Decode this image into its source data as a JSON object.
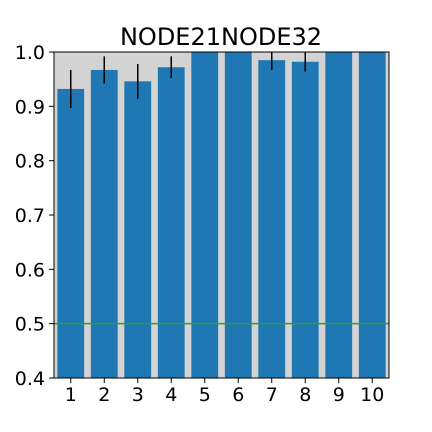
{
  "chart_data": {
    "type": "bar",
    "title": "NODE21NODE32",
    "xlabel": "",
    "ylabel": "",
    "categories": [
      "1",
      "2",
      "3",
      "4",
      "5",
      "6",
      "7",
      "8",
      "9",
      "10"
    ],
    "values": [
      0.932,
      0.967,
      0.946,
      0.972,
      1.0,
      1.0,
      0.985,
      0.982,
      1.0,
      1.0
    ],
    "errors": [
      0.035,
      0.025,
      0.032,
      0.02,
      0.0,
      0.0,
      0.018,
      0.018,
      0.0,
      0.0
    ],
    "ylim": [
      0.4,
      1.0
    ],
    "yticks": [
      "0.4",
      "0.5",
      "0.6",
      "0.7",
      "0.8",
      "0.9",
      "1.0"
    ],
    "reference_line": 0.5,
    "grid": false,
    "colors": {
      "bar": "#1f77b4",
      "error_bar": "#000000",
      "reference_line": "#2ca02c",
      "plot_background": "#d3d3d3"
    }
  }
}
